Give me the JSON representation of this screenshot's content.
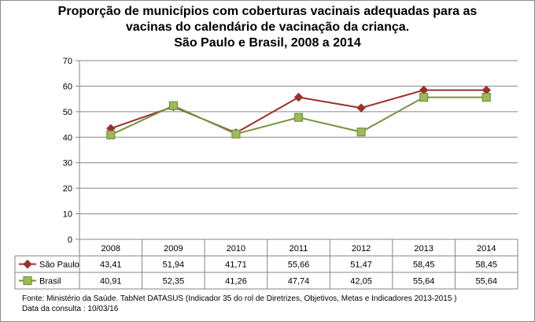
{
  "chart_data": {
    "type": "line",
    "title_lines": [
      "Proporção de municípios com coberturas vacinais adequadas para as",
      "vacinas do calendário de vacinação da criança.",
      "São Paulo e Brasil, 2008 a 2014"
    ],
    "categories": [
      "2008",
      "2009",
      "2010",
      "2011",
      "2012",
      "2013",
      "2014"
    ],
    "ylim": [
      0,
      70
    ],
    "yticks": [
      "0",
      "10",
      "20",
      "30",
      "40",
      "50",
      "60",
      "70"
    ],
    "ytick_values": [
      0,
      10,
      20,
      30,
      40,
      50,
      60,
      70
    ],
    "grid": true,
    "legend": "data-table",
    "series": [
      {
        "name": "São Paulo",
        "color": "#9b2f2c",
        "marker": "diamond",
        "values": [
          43.41,
          51.94,
          41.71,
          55.66,
          51.47,
          58.45,
          58.45
        ],
        "labels": [
          "43,41",
          "51,94",
          "41,71",
          "55,66",
          "51,47",
          "58,45",
          "58,45"
        ]
      },
      {
        "name": "Brasil",
        "color": "#77933c",
        "marker_fill": "#9bbb59",
        "marker": "square",
        "values": [
          40.91,
          52.35,
          41.26,
          47.74,
          42.05,
          55.64,
          55.64
        ],
        "labels": [
          "40,91",
          "52,35",
          "41,26",
          "47,74",
          "42,05",
          "55,64",
          "55,64"
        ]
      }
    ]
  },
  "source_lines": [
    "Fonte: Ministério da Saúde. TabNet DATASUS (Indicador 35 do rol de Diretrizes, Objetivos, Metas e Indicadores 2013-2015 )",
    "Data da consulta : 10/03/16"
  ]
}
